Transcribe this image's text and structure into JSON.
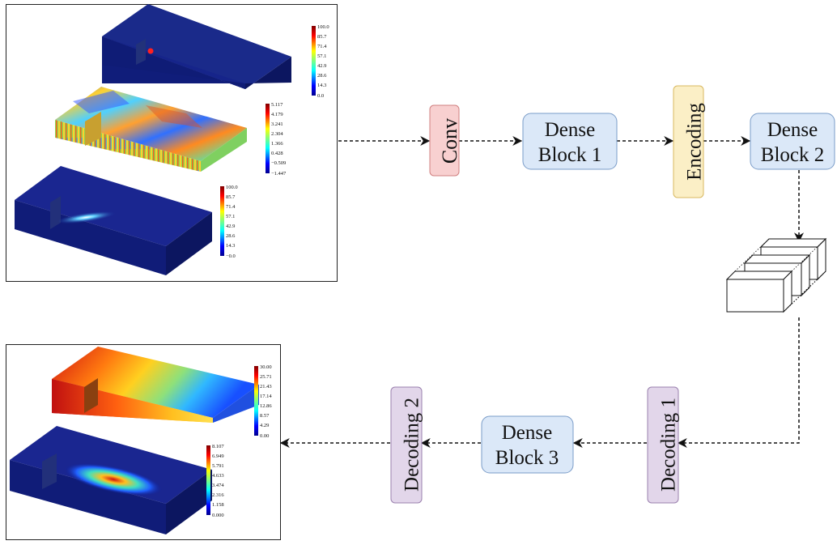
{
  "nodes": {
    "conv": "Conv",
    "dense1": [
      "Dense",
      "Block 1"
    ],
    "encoding": "Encoding",
    "dense2": [
      "Dense",
      "Block 2"
    ],
    "decoding1": "Decoding 1",
    "dense3": [
      "Dense",
      "Block 3"
    ],
    "decoding2": "Decoding 2"
  },
  "colors": {
    "conv_fill": "#f8d0d0",
    "conv_stroke": "#d08080",
    "dense_fill": "#dbe8f8",
    "dense_stroke": "#7a9cc8",
    "encoding_fill": "#fbefc6",
    "encoding_stroke": "#d8b860",
    "decoding_fill": "#e2d6ea",
    "decoding_stroke": "#9a80ae"
  },
  "inputs": {
    "colorbar1": [
      "100.0",
      "85.7",
      "71.4",
      "57.1",
      "42.9",
      "28.6",
      "14.3",
      "0.0"
    ],
    "colorbar2": [
      "5.117",
      "4.179",
      "3.241",
      "2.304",
      "1.366",
      "0.428",
      "−0.509",
      "−1.447"
    ],
    "colorbar3": [
      "100.0",
      "85.7",
      "71.4",
      "57.1",
      "42.9",
      "28.6",
      "14.3",
      "−0.0"
    ]
  },
  "outputs": {
    "colorbar1": [
      "30.00",
      "25.71",
      "21.43",
      "17.14",
      "12.86",
      "8.57",
      "4.29",
      "0.00"
    ],
    "colorbar2": [
      "8.107",
      "6.949",
      "5.791",
      "4.633",
      "3.474",
      "2.316",
      "1.158",
      "0.000"
    ]
  }
}
